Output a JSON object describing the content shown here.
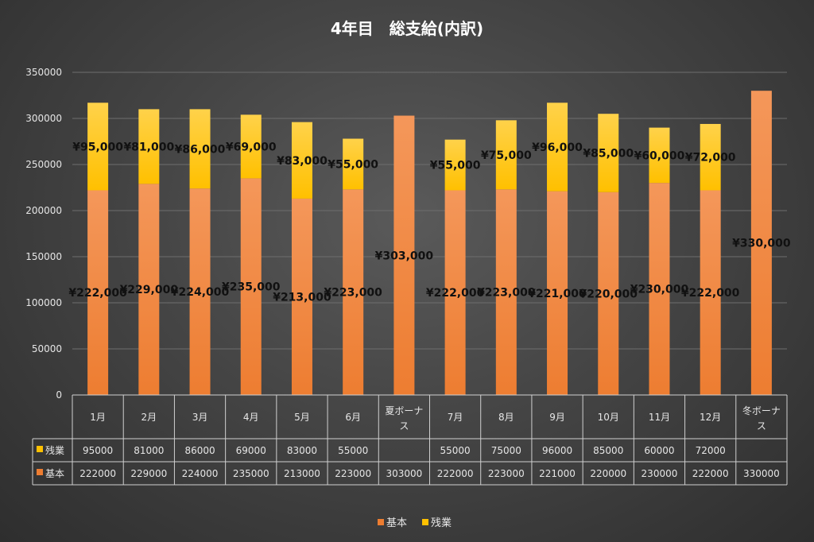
{
  "chart_data": {
    "type": "bar",
    "stacked": true,
    "title": "4年目　総支給(内訳)",
    "categories": [
      "1月",
      "2月",
      "3月",
      "4月",
      "5月",
      "6月",
      "夏ボーナス",
      "7月",
      "8月",
      "9月",
      "10月",
      "11月",
      "12月",
      "冬ボーナス"
    ],
    "series": [
      {
        "name": "基本",
        "color": "#ED7D31",
        "values": [
          222000,
          229000,
          224000,
          235000,
          213000,
          223000,
          303000,
          222000,
          223000,
          221000,
          220000,
          230000,
          222000,
          330000
        ],
        "labels": [
          "¥222,000",
          "¥229,000",
          "¥224,000",
          "¥235,000",
          "¥213,000",
          "¥223,000",
          "¥303,000",
          "¥222,000",
          "¥223,000",
          "¥221,000",
          "¥220,000",
          "¥230,000",
          "¥222,000",
          "¥330,000"
        ],
        "table": [
          "222000",
          "229000",
          "224000",
          "235000",
          "213000",
          "223000",
          "303000",
          "222000",
          "223000",
          "221000",
          "220000",
          "230000",
          "222000",
          "330000"
        ]
      },
      {
        "name": "残業",
        "color": "#FFC000",
        "values": [
          95000,
          81000,
          86000,
          69000,
          83000,
          55000,
          null,
          55000,
          75000,
          96000,
          85000,
          60000,
          72000,
          null
        ],
        "labels": [
          "¥95,000",
          "¥81,000",
          "¥86,000",
          "¥69,000",
          "¥83,000",
          "¥55,000",
          "",
          "¥55,000",
          "¥75,000",
          "¥96,000",
          "¥85,000",
          "¥60,000",
          "¥72,000",
          ""
        ],
        "table": [
          "95000",
          "81000",
          "86000",
          "69000",
          "83000",
          "55000",
          "",
          "55000",
          "75000",
          "96000",
          "85000",
          "60000",
          "72000",
          ""
        ]
      }
    ],
    "ylim": [
      0,
      350000
    ],
    "yticks": [
      "0",
      "50000",
      "100000",
      "150000",
      "200000",
      "250000",
      "300000",
      "350000"
    ],
    "grid": true,
    "data_table": true,
    "legend": {
      "position": "bottom",
      "order": [
        "基本",
        "残業"
      ]
    }
  }
}
